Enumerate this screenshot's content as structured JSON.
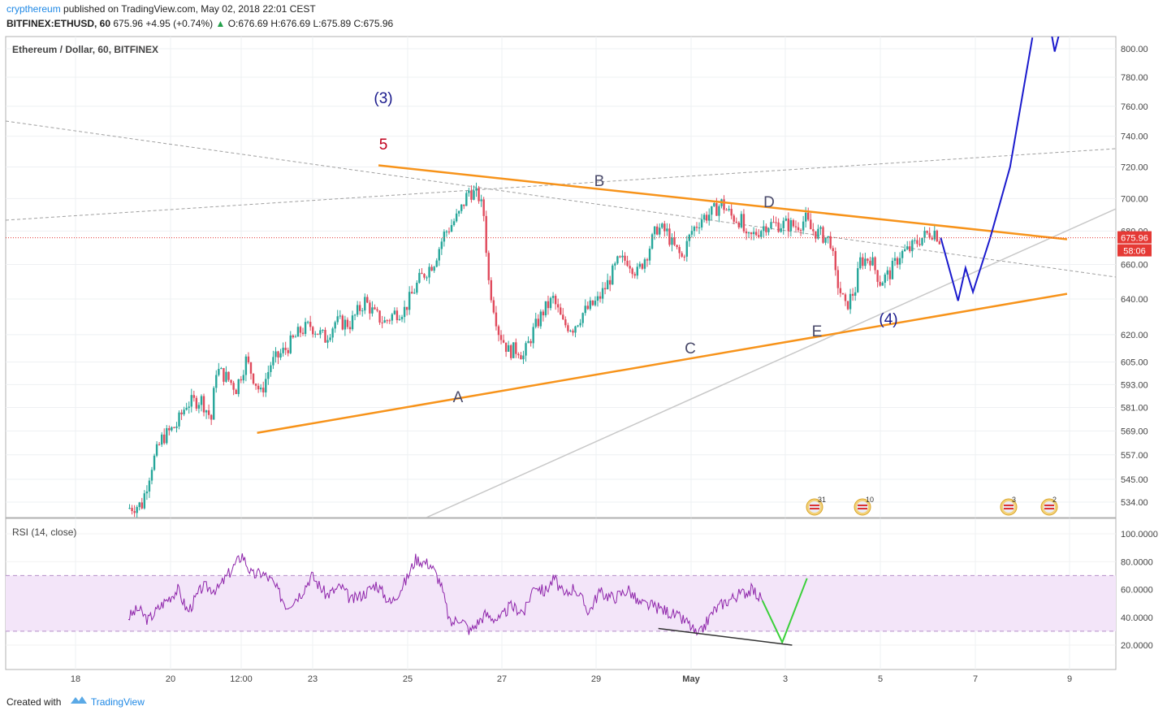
{
  "header": {
    "author": "crypthereum",
    "published_text": "published on TradingView.com, May 02, 2018 22:01 CEST",
    "symbol": "BITFINEX:ETHUSD, 60",
    "last": "675.96",
    "change_arrow": "▲",
    "change": "+4.95 (+0.74%)",
    "ohlc": "O:676.69 H:676.69 L:675.89 C:675.96"
  },
  "footer": {
    "created_with": "Created with",
    "brand": "TradingView"
  },
  "colors": {
    "up": "#26a69a",
    "down": "#e04a5c",
    "triangle": "#f7931a",
    "projection": "#1a1acd",
    "grey_line": "#c8c8c8",
    "rsi_line": "#8e24aa",
    "rsi_band": "#f3e5f9",
    "rsi_projection": "#3ad03a",
    "price_line": "#e53935",
    "wave_red": "#c0001c",
    "wave_blue": "#1a1a8c",
    "letter": "#4a4a6a"
  },
  "chart_data": [
    {
      "type": "candlestick",
      "title": "Ethereum / Dollar, 60, BITFINEX",
      "y_scale": "log",
      "y_ticks": [
        "800.00",
        "780.00",
        "760.00",
        "740.00",
        "720.00",
        "700.00",
        "680.00",
        "660.00",
        "640.00",
        "620.00",
        "605.00",
        "593.00",
        "581.00",
        "569.00",
        "557.00",
        "545.00",
        "534.00"
      ],
      "x_ticks": [
        "18",
        "20",
        "12:00",
        "23",
        "25",
        "27",
        "29",
        "May",
        "3",
        "5",
        "7",
        "9"
      ],
      "last_price_label": "675.96",
      "countdown_label": "58:06",
      "series_close_path": [
        [
          0,
          531
        ],
        [
          6,
          533
        ],
        [
          10,
          552
        ],
        [
          14,
          565
        ],
        [
          20,
          572
        ],
        [
          24,
          583
        ],
        [
          30,
          585
        ],
        [
          34,
          575
        ],
        [
          36,
          601
        ],
        [
          40,
          597
        ],
        [
          44,
          591
        ],
        [
          48,
          606
        ],
        [
          50,
          600
        ],
        [
          54,
          588
        ],
        [
          58,
          604
        ],
        [
          64,
          612
        ],
        [
          70,
          622
        ],
        [
          74,
          625
        ],
        [
          80,
          618
        ],
        [
          84,
          627
        ],
        [
          90,
          626
        ],
        [
          96,
          639
        ],
        [
          100,
          631
        ],
        [
          104,
          627
        ],
        [
          108,
          632
        ],
        [
          112,
          634
        ],
        [
          118,
          651
        ],
        [
          124,
          662
        ],
        [
          128,
          678
        ],
        [
          134,
          690
        ],
        [
          138,
          705
        ],
        [
          142,
          701
        ],
        [
          144,
          690
        ],
        [
          146,
          650
        ],
        [
          150,
          622
        ],
        [
          154,
          611
        ],
        [
          158,
          612
        ],
        [
          160,
          608
        ],
        [
          164,
          622
        ],
        [
          168,
          633
        ],
        [
          172,
          640
        ],
        [
          176,
          626
        ],
        [
          180,
          624
        ],
        [
          184,
          632
        ],
        [
          190,
          639
        ],
        [
          194,
          649
        ],
        [
          198,
          661
        ],
        [
          202,
          663
        ],
        [
          206,
          655
        ],
        [
          210,
          667
        ],
        [
          214,
          682
        ],
        [
          218,
          679
        ],
        [
          220,
          672
        ],
        [
          224,
          664
        ],
        [
          228,
          680
        ],
        [
          232,
          688
        ],
        [
          236,
          691
        ],
        [
          240,
          697
        ],
        [
          244,
          689
        ],
        [
          248,
          686
        ],
        [
          250,
          674
        ],
        [
          254,
          679
        ],
        [
          258,
          684
        ],
        [
          262,
          684
        ],
        [
          266,
          684
        ],
        [
          270,
          683
        ],
        [
          274,
          687
        ],
        [
          276,
          681
        ],
        [
          280,
          678
        ],
        [
          284,
          674
        ],
        [
          286,
          653
        ],
        [
          290,
          635
        ],
        [
          294,
          646
        ],
        [
          296,
          662
        ],
        [
          300,
          664
        ],
        [
          304,
          650
        ],
        [
          308,
          655
        ],
        [
          312,
          666
        ],
        [
          316,
          669
        ],
        [
          320,
          675
        ],
        [
          324,
          679
        ],
        [
          326,
          680
        ],
        [
          328,
          675
        ]
      ],
      "annotations": {
        "wave_3": "(3)",
        "wave_5": "5",
        "A": "A",
        "B": "B",
        "C": "C",
        "D": "D",
        "E": "E",
        "wave_4": "(4)"
      },
      "triangle_upper": [
        [
          101,
          721
        ],
        [
          379,
          675
        ]
      ],
      "triangle_lower": [
        [
          52,
          568
        ],
        [
          379,
          643
        ]
      ],
      "projection_path": [
        [
          328,
          676
        ],
        [
          335,
          639
        ],
        [
          338,
          658
        ],
        [
          341,
          644
        ],
        [
          348,
          676
        ],
        [
          356,
          720
        ],
        [
          365,
          808
        ]
      ],
      "events": [
        "31",
        "10",
        "3",
        "2"
      ]
    },
    {
      "type": "line",
      "title": "RSI (14, close)",
      "y_ticks": [
        "100.0000",
        "80.0000",
        "60.0000",
        "40.0000",
        "20.0000"
      ],
      "band": [
        30,
        70
      ],
      "series": [
        {
          "values": [
            [
              0,
              40
            ],
            [
              4,
              46
            ],
            [
              8,
              38
            ],
            [
              14,
              50
            ],
            [
              20,
              60
            ],
            [
              24,
              44
            ],
            [
              30,
              62
            ],
            [
              36,
              60
            ],
            [
              40,
              70
            ],
            [
              46,
              85
            ],
            [
              50,
              70
            ],
            [
              54,
              72
            ],
            [
              58,
              66
            ],
            [
              64,
              48
            ],
            [
              70,
              58
            ],
            [
              74,
              70
            ],
            [
              80,
              56
            ],
            [
              86,
              62
            ],
            [
              90,
              52
            ],
            [
              96,
              58
            ],
            [
              100,
              64
            ],
            [
              106,
              50
            ],
            [
              112,
              66
            ],
            [
              116,
              82
            ],
            [
              122,
              78
            ],
            [
              126,
              65
            ],
            [
              130,
              35
            ],
            [
              134,
              40
            ],
            [
              138,
              30
            ],
            [
              144,
              42
            ],
            [
              150,
              38
            ],
            [
              154,
              48
            ],
            [
              160,
              44
            ],
            [
              164,
              64
            ],
            [
              168,
              58
            ],
            [
              172,
              68
            ],
            [
              176,
              55
            ],
            [
              180,
              62
            ],
            [
              186,
              44
            ],
            [
              190,
              58
            ],
            [
              196,
              54
            ],
            [
              202,
              60
            ],
            [
              206,
              50
            ],
            [
              212,
              48
            ],
            [
              218,
              44
            ],
            [
              222,
              40
            ],
            [
              226,
              36
            ],
            [
              230,
              26
            ],
            [
              236,
              44
            ],
            [
              240,
              50
            ],
            [
              246,
              56
            ],
            [
              252,
              60
            ],
            [
              256,
              52
            ]
          ]
        },
        {
          "name": "",
          "values": [
            [
              256,
              52
            ],
            [
              264,
              22
            ],
            [
              274,
              68
            ]
          ]
        }
      ],
      "divergence_line": [
        [
          214,
          32
        ],
        [
          268,
          20
        ]
      ]
    }
  ]
}
